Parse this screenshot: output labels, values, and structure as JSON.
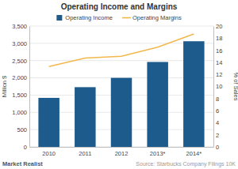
{
  "chart_data": {
    "type": "bar",
    "title": "Operating Income and Margins",
    "categories": [
      "2010",
      "2011",
      "2012",
      "2013*",
      "2014*"
    ],
    "series": [
      {
        "name": "Operating Income",
        "type": "bar",
        "color": "#1d5b8c",
        "values": [
          1420,
          1730,
          2000,
          2460,
          3060
        ]
      },
      {
        "name": "Operating Margins",
        "type": "line",
        "axis": "y2",
        "color": "#f2b84b",
        "values": [
          13.3,
          14.7,
          15.0,
          16.5,
          18.7
        ]
      }
    ],
    "y_label": "Million $",
    "y2_label": "% of Sales",
    "ylim": [
      0,
      3500
    ],
    "yticks": [
      0,
      500,
      {
        "value": 1000,
        "label": "1,000"
      },
      {
        "value": 1500,
        "label": "1,500"
      },
      {
        "value": 2000,
        "label": "2,000"
      },
      {
        "value": 2500,
        "label": "2,500"
      },
      {
        "value": 3000,
        "label": "3,000"
      },
      {
        "value": 3500,
        "label": "3,500"
      }
    ],
    "y2lim": [
      0,
      20
    ],
    "y2ticks": [
      0,
      2,
      4,
      6,
      8,
      10,
      12,
      14,
      16,
      18,
      20
    ],
    "grid": true,
    "legend": "top",
    "annotations": [
      "Market Realist",
      "Source: Starbucks Company Filings 10K"
    ]
  }
}
